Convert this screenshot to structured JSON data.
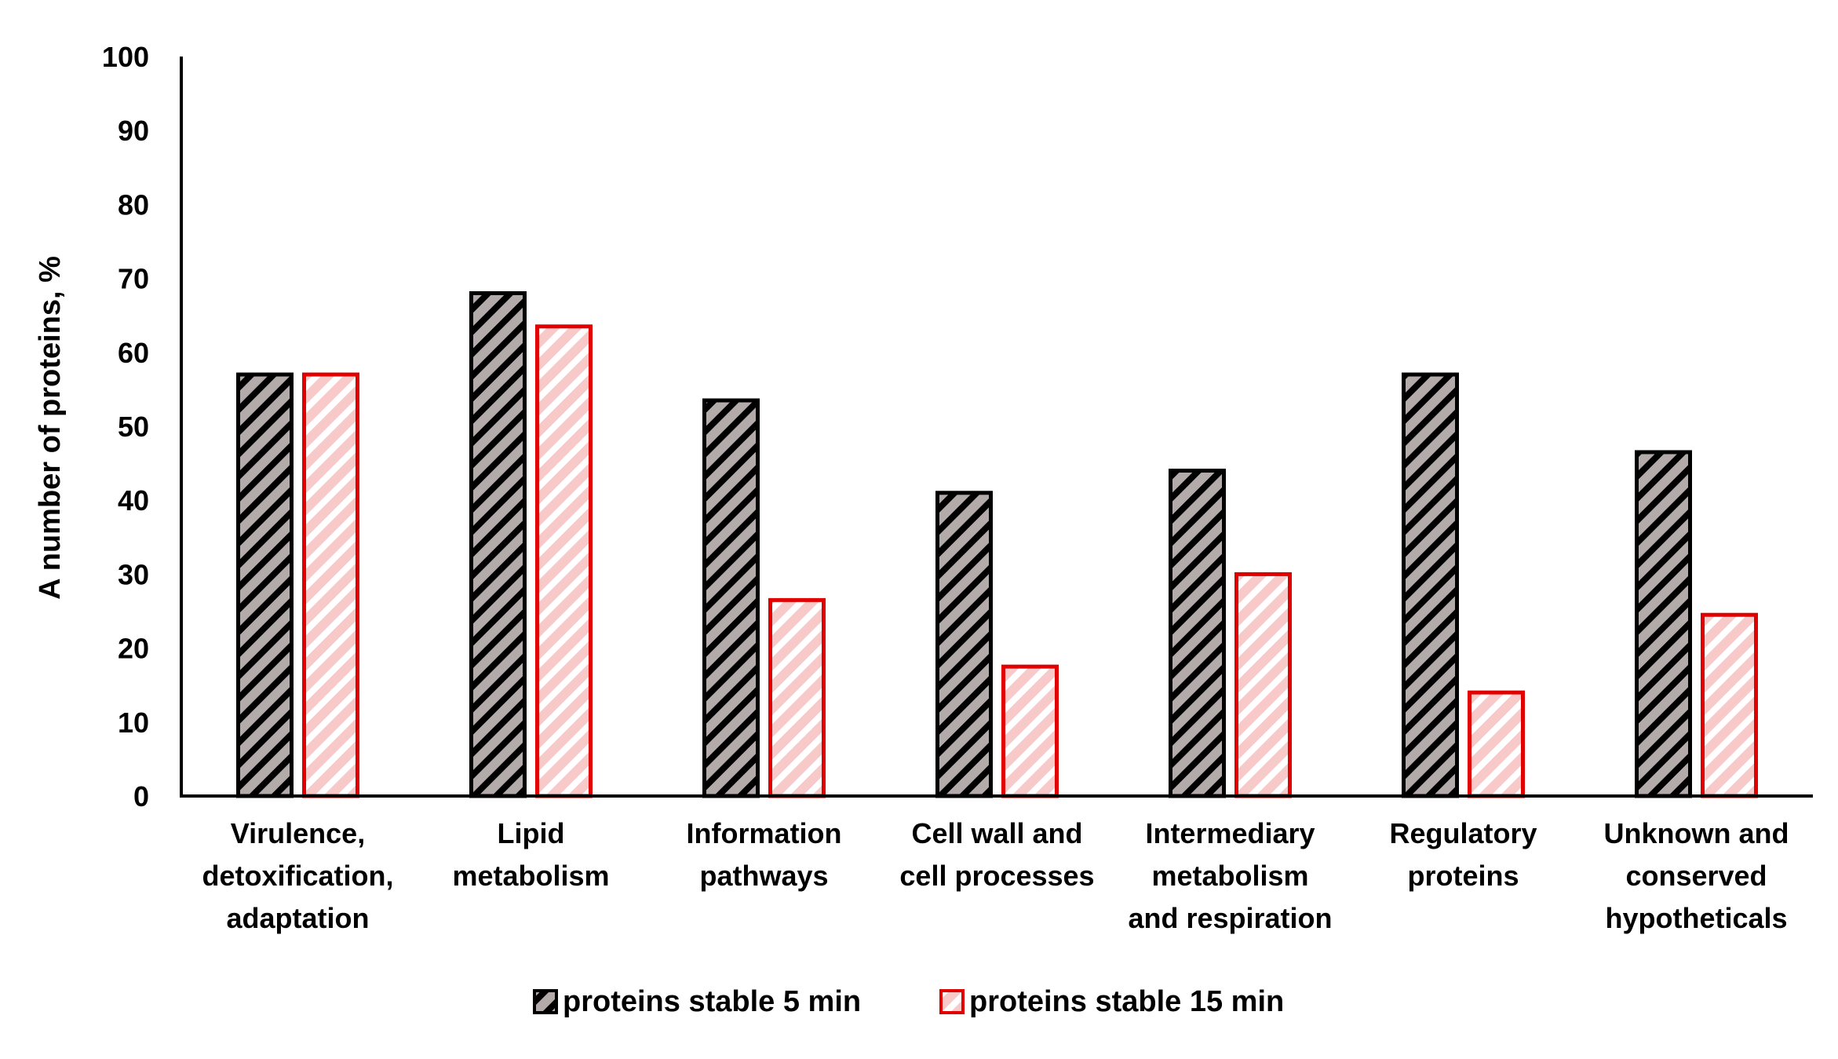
{
  "chart_data": {
    "type": "bar",
    "title": "",
    "xlabel": "",
    "ylabel": "A number of proteins, %",
    "ylim": [
      0,
      100
    ],
    "yticks": [
      "0",
      "10",
      "20",
      "30",
      "40",
      "50",
      "60",
      "70",
      "80",
      "90",
      "100"
    ],
    "grid": false,
    "legend_position": "bottom",
    "categories": [
      [
        "Virulence,",
        "detoxification,",
        "adaptation"
      ],
      [
        "Lipid",
        "metabolism"
      ],
      [
        "Information",
        "pathways"
      ],
      [
        "Cell wall and",
        "cell processes"
      ],
      [
        "Intermediary",
        "metabolism",
        "and respiration"
      ],
      [
        "Regulatory",
        "proteins"
      ],
      [
        "Unknown and",
        "conserved",
        "hypotheticals"
      ]
    ],
    "series": [
      {
        "name": "proteins stable 5 min",
        "fill": "#b3aaaa",
        "hatch": "#000000",
        "stroke": "#000000",
        "values": [
          57,
          68,
          53.5,
          41,
          44,
          57,
          46.5
        ]
      },
      {
        "name": "proteins stable 15 min",
        "fill": "#f8c9c9",
        "hatch": "#ffffff",
        "stroke": "#e00000",
        "values": [
          57,
          63.5,
          26.5,
          17.5,
          30,
          14,
          24.5
        ]
      }
    ]
  }
}
